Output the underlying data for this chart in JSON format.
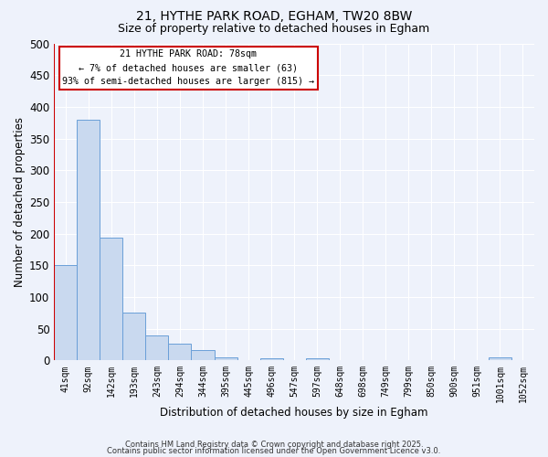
{
  "title_line1": "21, HYTHE PARK ROAD, EGHAM, TW20 8BW",
  "title_line2": "Size of property relative to detached houses in Egham",
  "xlabel": "Distribution of detached houses by size in Egham",
  "ylabel": "Number of detached properties",
  "categories": [
    "41sqm",
    "92sqm",
    "142sqm",
    "193sqm",
    "243sqm",
    "294sqm",
    "344sqm",
    "395sqm",
    "445sqm",
    "496sqm",
    "547sqm",
    "597sqm",
    "648sqm",
    "698sqm",
    "749sqm",
    "799sqm",
    "850sqm",
    "900sqm",
    "951sqm",
    "1001sqm",
    "1052sqm"
  ],
  "values": [
    150,
    380,
    193,
    75,
    40,
    27,
    17,
    5,
    0,
    3,
    0,
    3,
    0,
    0,
    0,
    0,
    0,
    0,
    0,
    5,
    0
  ],
  "bar_color": "#c9d9ef",
  "bar_edge_color": "#6a9fd8",
  "ylim": [
    0,
    500
  ],
  "yticks": [
    0,
    50,
    100,
    150,
    200,
    250,
    300,
    350,
    400,
    450,
    500
  ],
  "vline_color": "#cc0000",
  "annotation_text_line1": "21 HYTHE PARK ROAD: 78sqm",
  "annotation_text_line2": "← 7% of detached houses are smaller (63)",
  "annotation_text_line3": "93% of semi-detached houses are larger (815) →",
  "annotation_box_color": "#cc0000",
  "background_color": "#eef2fb",
  "grid_color": "#ffffff",
  "footer_line1": "Contains HM Land Registry data © Crown copyright and database right 2025.",
  "footer_line2": "Contains public sector information licensed under the Open Government Licence v3.0."
}
